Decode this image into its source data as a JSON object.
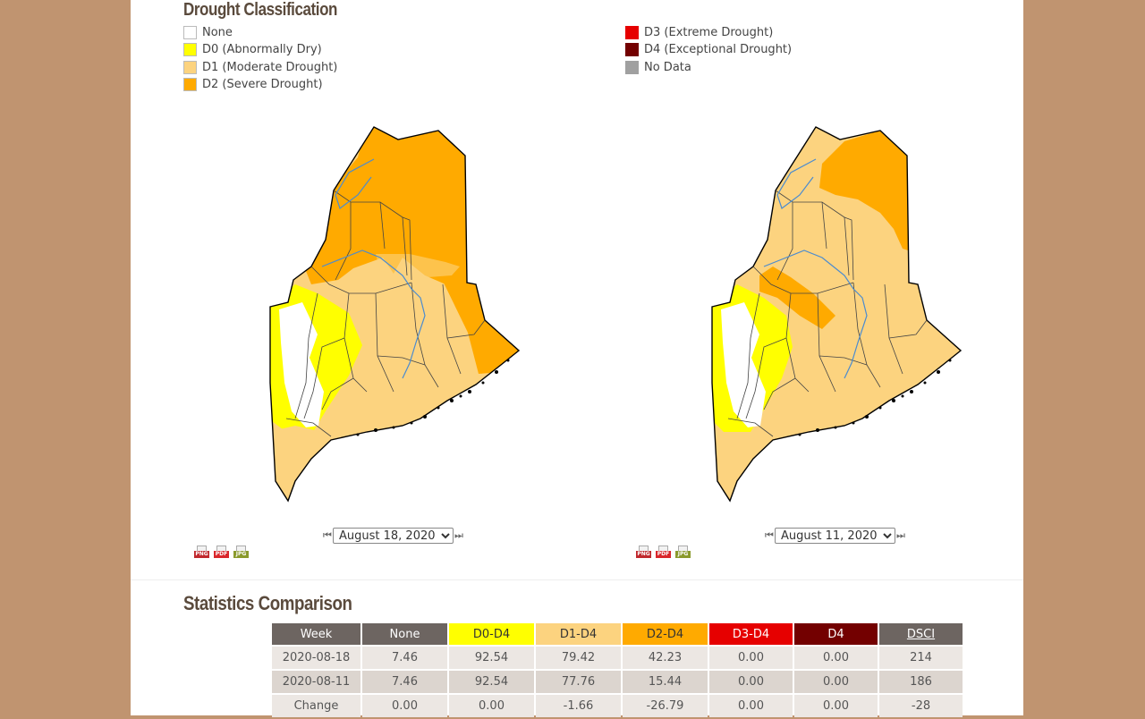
{
  "legend": {
    "title": "Drought Classification",
    "left_items": [
      {
        "label": "None",
        "color": "#ffffff"
      },
      {
        "label": "D0 (Abnormally Dry)",
        "color": "#ffff00"
      },
      {
        "label": "D1 (Moderate Drought)",
        "color": "#fcd37f"
      },
      {
        "label": "D2 (Severe Drought)",
        "color": "#ffaa00"
      }
    ],
    "right_items": [
      {
        "label": "D3 (Extreme Drought)",
        "color": "#e60000"
      },
      {
        "label": "D4 (Exceptional Drought)",
        "color": "#730000"
      },
      {
        "label": "No Data",
        "color": "#a0a0a0"
      }
    ]
  },
  "maps": {
    "left": {
      "date": "August 18, 2020"
    },
    "right": {
      "date": "August 11, 2020"
    },
    "download_formats": [
      "PNG",
      "PDF",
      "JPG"
    ]
  },
  "stats": {
    "title": "Statistics Comparison",
    "headers": [
      {
        "label": "Week",
        "color": "#6d6561",
        "text": "#ffffff"
      },
      {
        "label": "None",
        "color": "#6d6561",
        "text": "#ffffff"
      },
      {
        "label": "D0-D4",
        "color": "#ffff00",
        "text": "#333333"
      },
      {
        "label": "D1-D4",
        "color": "#fcd37f",
        "text": "#333333"
      },
      {
        "label": "D2-D4",
        "color": "#ffaa00",
        "text": "#333333"
      },
      {
        "label": "D3-D4",
        "color": "#e60000",
        "text": "#ffffff"
      },
      {
        "label": "D4",
        "color": "#730000",
        "text": "#ffffff"
      },
      {
        "label": "DSCI",
        "color": "#6d6561",
        "text": "#ffffff"
      }
    ],
    "rows": [
      [
        "2020-08-18",
        "7.46",
        "92.54",
        "79.42",
        "42.23",
        "0.00",
        "0.00",
        "214"
      ],
      [
        "2020-08-11",
        "7.46",
        "92.54",
        "77.76",
        "15.44",
        "0.00",
        "0.00",
        "186"
      ],
      [
        "Change",
        "0.00",
        "0.00",
        "-1.66",
        "-26.79",
        "0.00",
        "0.00",
        "-28"
      ]
    ]
  }
}
